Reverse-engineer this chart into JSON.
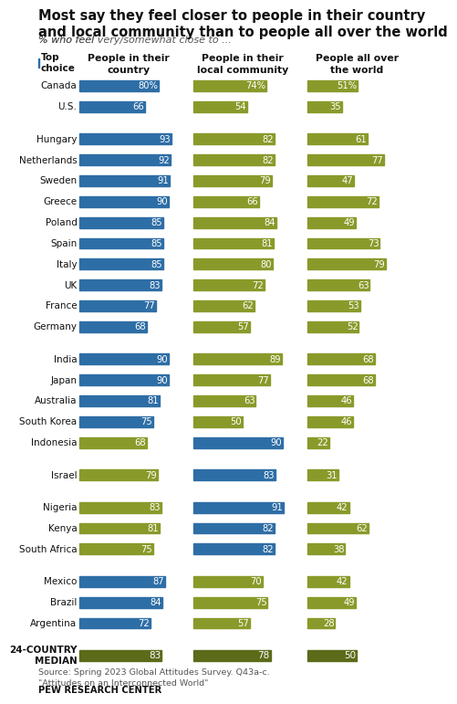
{
  "title": "Most say they feel closer to people in their country\nand local community than to people all over the world",
  "subtitle_italic": "% who feel ",
  "subtitle_bold": "very/somewhat",
  "subtitle_end": " close to ...",
  "col_headers": [
    "People in their\ncountry",
    "People in their\nlocal community",
    "People all over\nthe world"
  ],
  "legend_label": "Top\nchoice",
  "countries": [
    "Canada",
    "U.S.",
    "Hungary",
    "Netherlands",
    "Sweden",
    "Greece",
    "Poland",
    "Spain",
    "Italy",
    "UK",
    "France",
    "Germany",
    "India",
    "Japan",
    "Australia",
    "South Korea",
    "Indonesia",
    "Israel",
    "Nigeria",
    "Kenya",
    "South Africa",
    "Mexico",
    "Brazil",
    "Argentina",
    "24-COUNTRY\nMEDIAN"
  ],
  "col1": [
    80,
    66,
    93,
    92,
    91,
    90,
    85,
    85,
    85,
    83,
    77,
    68,
    90,
    90,
    81,
    75,
    68,
    79,
    83,
    81,
    75,
    87,
    84,
    72,
    83
  ],
  "col2": [
    74,
    54,
    82,
    82,
    79,
    66,
    84,
    81,
    80,
    72,
    62,
    57,
    89,
    77,
    63,
    50,
    90,
    83,
    91,
    82,
    82,
    70,
    75,
    57,
    78
  ],
  "col3": [
    51,
    35,
    61,
    77,
    47,
    72,
    49,
    73,
    79,
    63,
    53,
    52,
    68,
    68,
    46,
    46,
    22,
    31,
    42,
    62,
    38,
    42,
    49,
    28,
    50
  ],
  "top_choice_col": [
    0,
    0,
    0,
    0,
    0,
    0,
    0,
    0,
    0,
    0,
    0,
    0,
    0,
    0,
    0,
    0,
    1,
    1,
    1,
    1,
    1,
    0,
    0,
    0,
    -1
  ],
  "pct_labels": [
    [
      true,
      true,
      true
    ],
    [
      false,
      false,
      false
    ]
  ],
  "blue": "#2E6EA6",
  "olive": "#8A9A2A",
  "dark_olive": "#5C6B1A",
  "background": "#FFFFFF",
  "source_text": "Source: Spring 2023 Global Attitudes Survey. Q43a-c.\n\"Attitudes on an Interconnected World\"",
  "footer_text": "PEW RESEARCH CENTER",
  "group_starts": [
    0,
    2,
    12,
    17,
    18,
    21,
    24
  ]
}
